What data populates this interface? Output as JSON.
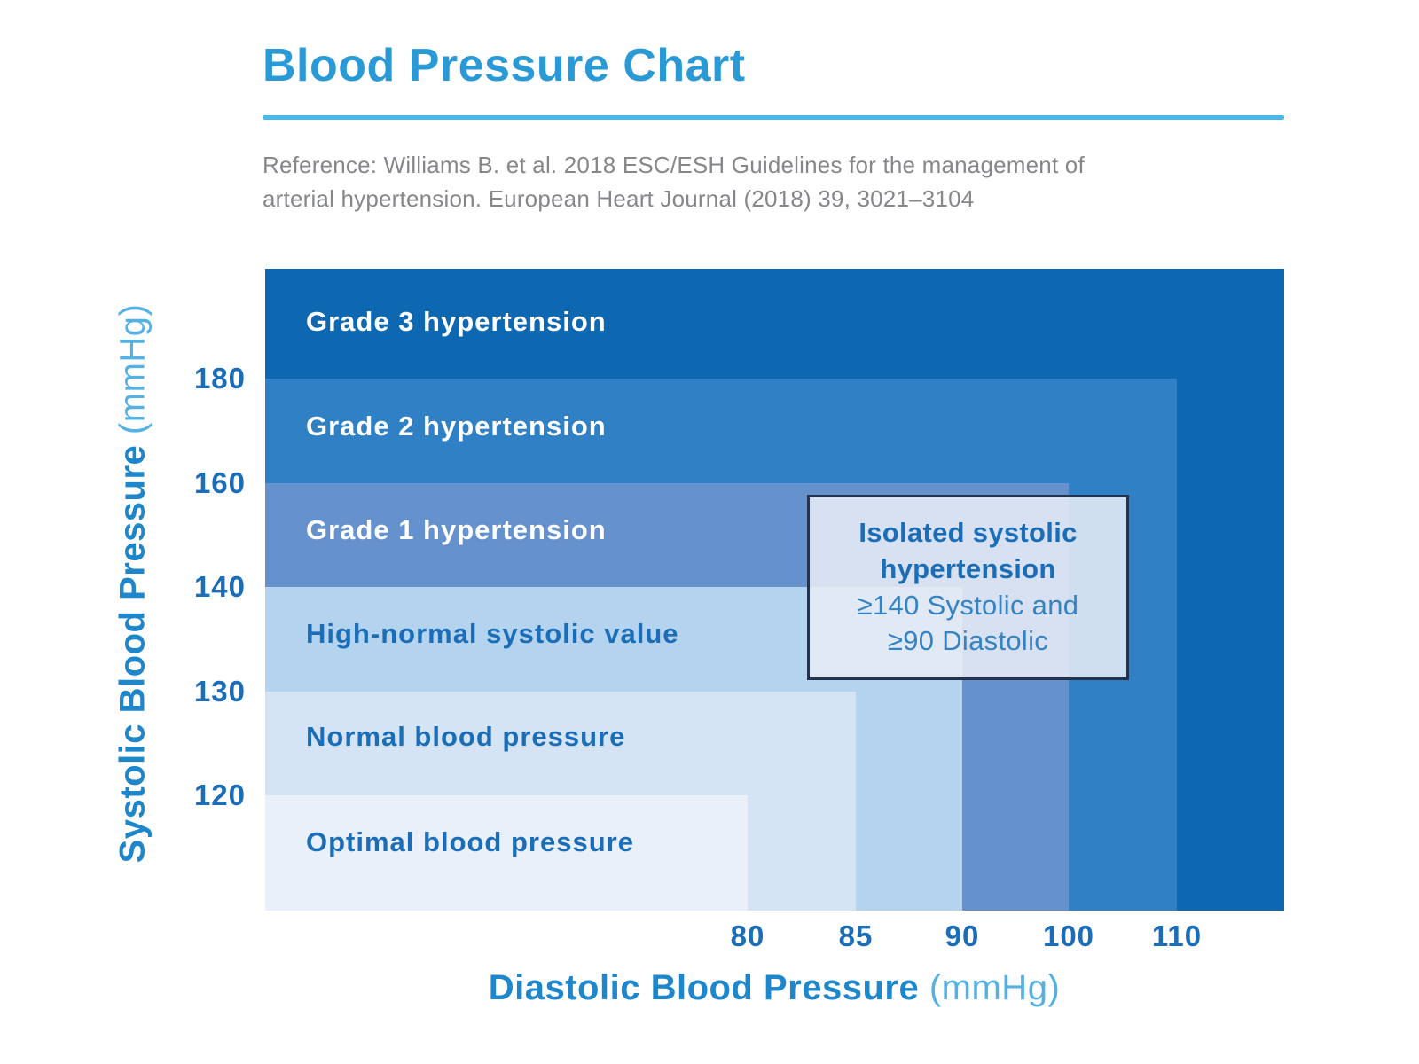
{
  "header": {
    "title": "Blood Pressure Chart",
    "reference_line1": "Reference: Williams B. et al. 2018 ESC/ESH Guidelines for the management of",
    "reference_line2": "arterial hypertension. European Heart Journal (2018) 39, 3021–3104"
  },
  "colors": {
    "title_text": "#2a9ad7",
    "title_rule": "#4ab9e9",
    "reference_text": "#85878a",
    "axis_label": "#1e86cb",
    "axis_unit": "#55b1e1",
    "tick_text": "#1a6db6",
    "annotation_border": "#24334d",
    "annotation_bg": "rgba(231,236,246,0.88)",
    "annotation_title_text": "#1a6db6",
    "annotation_body_text": "#3583c5"
  },
  "chart_data": {
    "type": "heatmap",
    "title": "Blood Pressure Chart",
    "xlabel": "Diastolic Blood Pressure",
    "xlabel_unit": "(mmHg)",
    "ylabel": "Systolic Blood Pressure",
    "ylabel_unit": "(mmHg)",
    "x_ticks": [
      80,
      85,
      90,
      100,
      110
    ],
    "y_ticks": [
      180,
      160,
      140,
      130,
      120
    ],
    "x_axis_note": "category boundaries at 80, 85, 90, 100, 110 mmHg drawn at equal pixel spacing",
    "y_axis_note": "category boundaries at 120, 130, 140, 160, 180 mmHg drawn at equal pixel spacing",
    "grid": false,
    "legend": "category labels drawn inside the nested colored bands",
    "bands": [
      {
        "label": "Grade 3 hypertension",
        "systolic": "≥180",
        "diastolic": "≥110",
        "color": "#0d67b1",
        "label_color": "#ffffff"
      },
      {
        "label": "Grade 2 hypertension",
        "systolic": "160–179",
        "diastolic": "100–109",
        "color": "#2f80c4",
        "label_color": "#ffffff"
      },
      {
        "label": "Grade 1 hypertension",
        "systolic": "140–159",
        "diastolic": "90–99",
        "color": "#6592cc",
        "label_color": "#ffffff"
      },
      {
        "label": "High-normal systolic value",
        "systolic": "130–139",
        "diastolic": "85–89",
        "color": "#b4d3ef",
        "label_color": "#1a6db6"
      },
      {
        "label": "Normal blood pressure",
        "systolic": "120–129",
        "diastolic": "80–84",
        "color": "#d4e4f5",
        "label_color": "#1a6db6"
      },
      {
        "label": "Optimal blood pressure",
        "systolic": "<120",
        "diastolic": "<80",
        "color": "#e9f0f9",
        "label_color": "#1a6db6"
      }
    ],
    "annotation": {
      "lines": [
        "Isolated systolic",
        "hypertension",
        "≥140 Systolic and",
        "≥90 Diastolic"
      ]
    }
  }
}
